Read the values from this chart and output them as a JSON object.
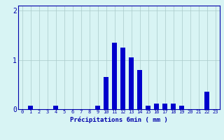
{
  "categories": [
    0,
    1,
    2,
    3,
    4,
    5,
    6,
    7,
    8,
    9,
    10,
    11,
    12,
    13,
    14,
    15,
    16,
    17,
    18,
    19,
    20,
    21,
    22,
    23
  ],
  "values": [
    0,
    0.07,
    0,
    0,
    0.07,
    0,
    0,
    0,
    0,
    0.07,
    0.65,
    1.35,
    1.25,
    1.05,
    0.8,
    0.07,
    0.12,
    0.12,
    0.12,
    0.07,
    0.0,
    0,
    0.35,
    0
  ],
  "bar_color": "#0000cc",
  "background_color": "#d8f4f4",
  "grid_color": "#aacaca",
  "axis_color": "#0000aa",
  "xlabel": "Précipitations 6min ( mm )",
  "ylim": [
    0,
    2.1
  ],
  "yticks": [
    0,
    1,
    2
  ],
  "bar_width": 0.6
}
